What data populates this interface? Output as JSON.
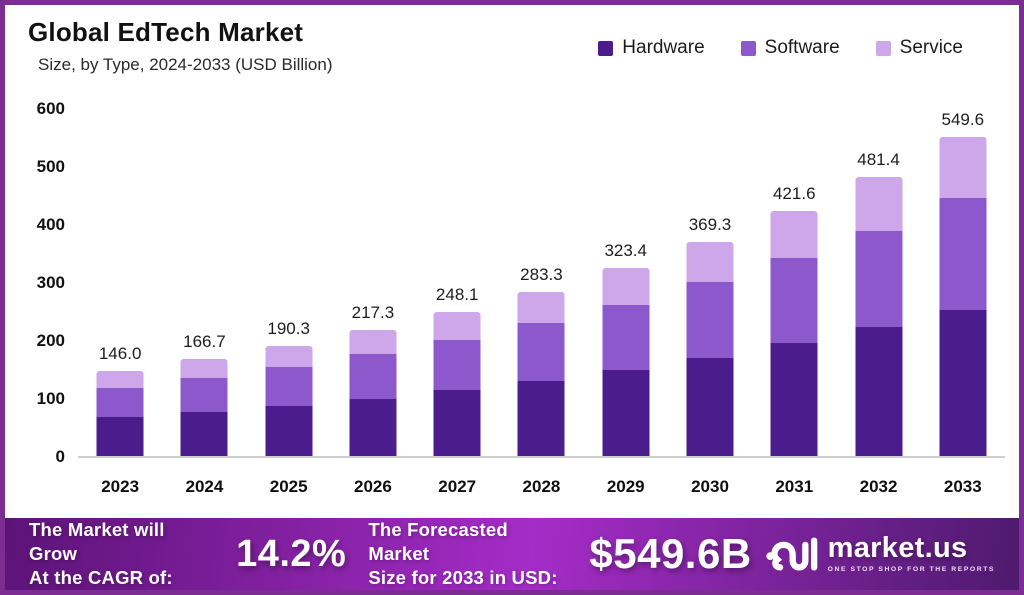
{
  "header": {
    "title": "Global EdTech Market",
    "subtitle": "Size, by Type, 2024-2033 (USD Billion)"
  },
  "colors": {
    "frame_border": "#7c2d92",
    "axis_line": "#cfcfcf",
    "hardware": "#4b1d8c",
    "software": "#8c58cc",
    "service": "#cda7ea"
  },
  "chart_data": {
    "type": "bar",
    "subtype": "stacked",
    "title": "Global EdTech Market Size, by Type, 2024-2033 (USD Billion)",
    "xlabel": "",
    "ylabel": "USD Billion",
    "ylim": [
      0,
      600
    ],
    "y_ticks": [
      "600",
      "500",
      "400",
      "300",
      "200",
      "100",
      "0"
    ],
    "grid": false,
    "legend_position": "top-right",
    "categories": [
      "2023",
      "2024",
      "2025",
      "2026",
      "2027",
      "2028",
      "2029",
      "2030",
      "2031",
      "2032",
      "2033"
    ],
    "series": [
      {
        "name": "Hardware",
        "color": "#4b1d8c",
        "values": [
          66.4,
          76.0,
          86.6,
          99.0,
          113.2,
          129.5,
          148.0,
          169.2,
          194.0,
          222.0,
          252.4
        ]
      },
      {
        "name": "Software",
        "color": "#8c58cc",
        "values": [
          51.1,
          58.2,
          66.5,
          76.2,
          86.6,
          99.5,
          112.5,
          130.4,
          146.8,
          166.5,
          192.2
        ]
      },
      {
        "name": "Service",
        "color": "#cda7ea",
        "values": [
          28.5,
          32.5,
          37.2,
          42.1,
          48.3,
          54.3,
          62.9,
          69.7,
          80.8,
          92.9,
          105.0
        ]
      }
    ],
    "totals_display": [
      "146.0",
      "166.7",
      "190.3",
      "217.3",
      "248.1",
      "283.3",
      "323.4",
      "369.3",
      "421.6",
      "481.4",
      "549.6"
    ]
  },
  "banner": {
    "gradient": [
      "#5c1377",
      "#a52cc7",
      "#4e1a6e"
    ],
    "cagr_line1": "The Market will Grow",
    "cagr_line2": "At the CAGR of:",
    "cagr_value": "14.2%",
    "forecast_line1": "The Forecasted Market",
    "forecast_line2": "Size for 2033 in USD:",
    "forecast_value": "$549.6B",
    "logo_text": "market.us",
    "logo_tagline": "ONE STOP SHOP FOR THE REPORTS"
  }
}
